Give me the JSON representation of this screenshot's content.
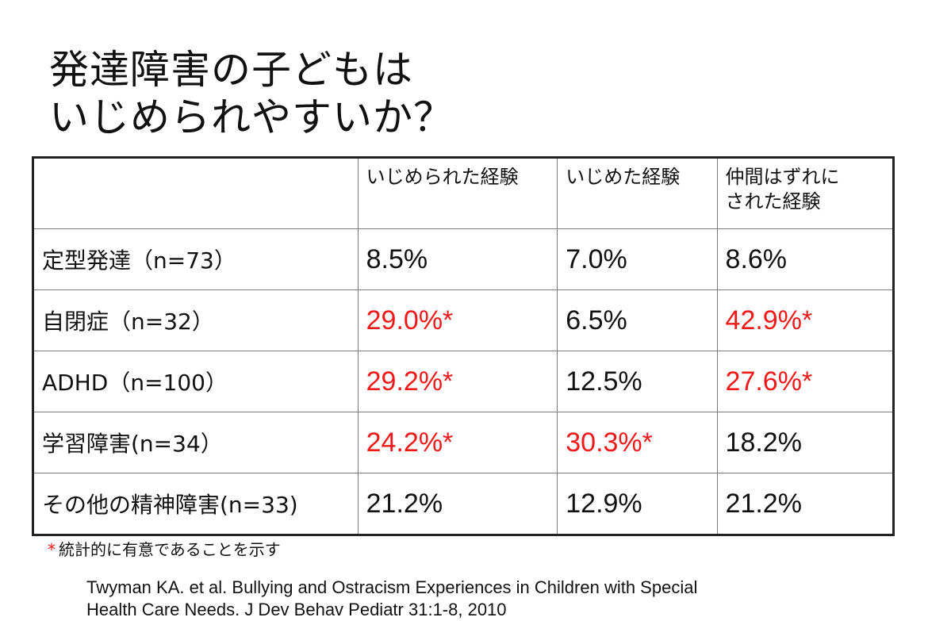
{
  "title": {
    "line1": "発達障害の子どもは",
    "line2": "いじめられやすいか？"
  },
  "table": {
    "headers": [
      "",
      "いじめられた経験",
      "いじめた経験",
      "仲間はずれに\nされた経験"
    ],
    "header_lines": {
      "col3_line1": "仲間はずれに",
      "col3_line2": "された経験"
    },
    "rows": [
      {
        "label": "定型発達（n=73）",
        "values": [
          "8.5%",
          "7.0%",
          "8.6%"
        ],
        "significant": [
          false,
          false,
          false
        ]
      },
      {
        "label": "自閉症（n=32）",
        "values": [
          "29.0%*",
          "6.5%",
          "42.9%*"
        ],
        "significant": [
          true,
          false,
          true
        ]
      },
      {
        "label": "ADHD（n=100）",
        "values": [
          "29.2%*",
          "12.5%",
          "27.6%*"
        ],
        "significant": [
          true,
          false,
          true
        ]
      },
      {
        "label": "学習障害(n=34）",
        "values": [
          "24.2%*",
          "30.3%*",
          "18.2%"
        ],
        "significant": [
          true,
          true,
          false
        ]
      },
      {
        "label": "その他の精神障害(n=33)",
        "values": [
          "21.2%",
          "12.9%",
          "21.2%"
        ],
        "significant": [
          false,
          false,
          false
        ]
      }
    ]
  },
  "colors": {
    "significant": "#f01818",
    "text": "#111111",
    "table_border": "#222222"
  },
  "note": {
    "star": "*",
    "text": "統計的に有意であることを示す"
  },
  "citation": {
    "line1": "Twyman KA. et al.  Bullying and Ostracism Experiences in Children with Special",
    "line2": "Health Care Needs.  J Dev Behav Pediatr 31:1-8, 2010"
  }
}
